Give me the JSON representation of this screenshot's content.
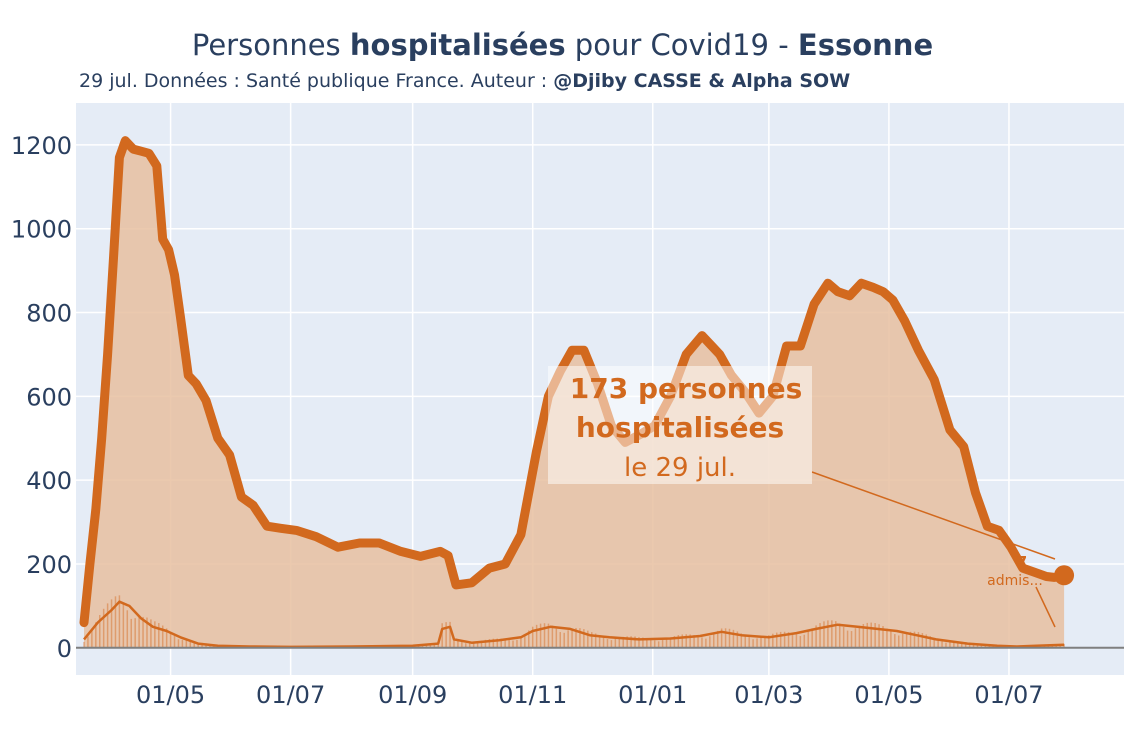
{
  "title": {
    "part1": "Personnes ",
    "bold1": "hospitalisées",
    "part2": " pour Covid19 - ",
    "bold2": "Essonne"
  },
  "subtitle": {
    "text": "29 jul. Données : Santé publique France. Auteur : ",
    "author": "@Djiby CASSE & Alpha SOW"
  },
  "annotation": {
    "line1": "173 personnes",
    "line2": "hospitalisées",
    "line3": "le 29 jul."
  },
  "admissions_annotation": {
    "value": "7",
    "label": "admis..."
  },
  "colors": {
    "main": "#d2691e",
    "fill": "#e8c0a0",
    "plot_bg": "#e5ecf6",
    "grid": "#ffffff",
    "text": "#2a3f5f",
    "baseline": "#7f7f7f"
  },
  "chart_data": {
    "type": "line",
    "x_start_date": "2020-03-18",
    "ylim": [
      -65,
      1300
    ],
    "yticks": [
      "0",
      "200",
      "400",
      "600",
      "800",
      "1000",
      "1200"
    ],
    "xticks": [
      "01/05",
      "01/07",
      "01/09",
      "01/11",
      "01/01",
      "01/03",
      "01/05",
      "01/07"
    ],
    "series": [
      {
        "type": "area-line",
        "dates": [
          "2020-03-18",
          "2020-03-21",
          "2020-03-24",
          "2020-03-27",
          "2020-03-30",
          "2020-04-02",
          "2020-04-05",
          "2020-04-08",
          "2020-04-12",
          "2020-04-16",
          "2020-04-20",
          "2020-04-24",
          "2020-04-27",
          "2020-04-30",
          "2020-05-03",
          "2020-05-06",
          "2020-05-10",
          "2020-05-14",
          "2020-05-19",
          "2020-05-25",
          "2020-05-31",
          "2020-06-06",
          "2020-06-12",
          "2020-06-19",
          "2020-06-26",
          "2020-07-04",
          "2020-07-14",
          "2020-07-25",
          "2020-08-05",
          "2020-08-15",
          "2020-08-26",
          "2020-09-05",
          "2020-09-15",
          "2020-09-19",
          "2020-09-23",
          "2020-10-01",
          "2020-10-10",
          "2020-10-18",
          "2020-10-26",
          "2020-11-03",
          "2020-11-09",
          "2020-11-15",
          "2020-11-21",
          "2020-11-27",
          "2020-12-04",
          "2020-12-11",
          "2020-12-18",
          "2020-12-26",
          "2021-01-02",
          "2021-01-10",
          "2021-01-18",
          "2021-01-26",
          "2021-01-31",
          "2021-02-04",
          "2021-02-10",
          "2021-02-17",
          "2021-02-24",
          "2021-03-03",
          "2021-03-10",
          "2021-03-17",
          "2021-03-24",
          "2021-03-31",
          "2021-04-05",
          "2021-04-11",
          "2021-04-17",
          "2021-04-23",
          "2021-04-28",
          "2021-05-03",
          "2021-05-09",
          "2021-05-16",
          "2021-05-24",
          "2021-06-01",
          "2021-06-08",
          "2021-06-14",
          "2021-06-20",
          "2021-06-26",
          "2021-07-02",
          "2021-07-08",
          "2021-07-14",
          "2021-07-20",
          "2021-07-24",
          "2021-07-27",
          "2021-07-29"
        ],
        "values": [
          60,
          200,
          330,
          500,
          700,
          930,
          1170,
          1210,
          1190,
          1185,
          1180,
          1150,
          975,
          950,
          890,
          790,
          650,
          630,
          590,
          500,
          460,
          360,
          340,
          290,
          285,
          280,
          265,
          240,
          250,
          250,
          230,
          218,
          230,
          220,
          150,
          155,
          190,
          200,
          270,
          470,
          600,
          660,
          710,
          710,
          630,
          530,
          490,
          510,
          530,
          600,
          700,
          745,
          720,
          700,
          650,
          610,
          560,
          600,
          720,
          720,
          820,
          870,
          850,
          840,
          870,
          860,
          850,
          830,
          780,
          710,
          640,
          520,
          480,
          370,
          290,
          280,
          240,
          190,
          180,
          170,
          168,
          170,
          173
        ]
      },
      {
        "type": "line",
        "name": "admissions",
        "dates": [
          "2020-03-18",
          "2020-03-25",
          "2020-04-01",
          "2020-04-05",
          "2020-04-10",
          "2020-04-16",
          "2020-04-22",
          "2020-04-29",
          "2020-05-06",
          "2020-05-15",
          "2020-05-25",
          "2020-06-10",
          "2020-07-01",
          "2020-08-01",
          "2020-09-01",
          "2020-09-14",
          "2020-09-16",
          "2020-09-20",
          "2020-09-22",
          "2020-10-01",
          "2020-10-15",
          "2020-10-26",
          "2020-11-01",
          "2020-11-10",
          "2020-11-20",
          "2020-11-30",
          "2020-12-10",
          "2020-12-25",
          "2021-01-10",
          "2021-01-25",
          "2021-02-05",
          "2021-02-15",
          "2021-03-01",
          "2021-03-15",
          "2021-03-25",
          "2021-04-05",
          "2021-04-15",
          "2021-04-25",
          "2021-05-05",
          "2021-05-15",
          "2021-05-25",
          "2021-06-10",
          "2021-06-25",
          "2021-07-05",
          "2021-07-15",
          "2021-07-29"
        ],
        "values": [
          20,
          60,
          90,
          110,
          100,
          70,
          50,
          40,
          25,
          10,
          5,
          3,
          2,
          3,
          5,
          10,
          45,
          50,
          20,
          12,
          18,
          25,
          40,
          50,
          45,
          30,
          25,
          20,
          22,
          28,
          38,
          30,
          25,
          35,
          45,
          55,
          50,
          45,
          40,
          30,
          20,
          10,
          5,
          3,
          5,
          7
        ]
      }
    ]
  }
}
